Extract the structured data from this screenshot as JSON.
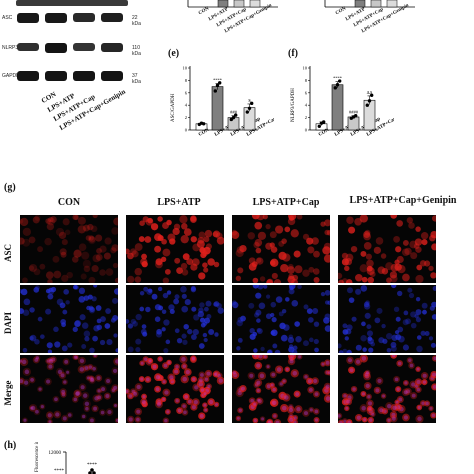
{
  "blot": {
    "rows": [
      {
        "label": "ASC",
        "kda": "22 kDa",
        "bands": [
          0.95,
          0.95,
          0.7,
          0.85
        ]
      },
      {
        "label": "NLRP3",
        "kda": "110 kDa",
        "bands": [
          0.6,
          1.0,
          0.55,
          0.75
        ]
      },
      {
        "label": "GAPDH",
        "kda": "37 kDa",
        "bands": [
          1.0,
          1.0,
          1.0,
          1.0
        ]
      }
    ],
    "lanes": [
      "CON",
      "LPS+ATP",
      "LPS+ATP+Cap",
      "LPS+ATP+Cap+Genipin"
    ]
  },
  "panels": {
    "e": "(e)",
    "f": "(f)",
    "g": "(g)",
    "h": "(h)"
  },
  "chart_data": [
    {
      "type": "bar",
      "panel": "(e)",
      "ylabel": "ASC/GAPDH",
      "categories": [
        "CON",
        "LPS+ATP",
        "LPS+ATP+Cap",
        "LPS+ATP+Cap+Genipin"
      ],
      "values": [
        1.0,
        7.0,
        2.0,
        3.6
      ],
      "points": [
        [
          0.9,
          1.1,
          1.0
        ],
        [
          6.3,
          7.2,
          7.6
        ],
        [
          1.7,
          2.0,
          2.4
        ],
        [
          2.9,
          3.5,
          4.3
        ]
      ],
      "errors": [
        0.1,
        0.5,
        0.3,
        0.6
      ],
      "annotations": [
        "",
        "****",
        "###",
        "$"
      ],
      "ylim": [
        0,
        10
      ],
      "yticks": [
        0,
        2,
        4,
        6,
        8,
        10
      ],
      "colors": [
        "#ffffff",
        "#7f7f7f",
        "#c8c8c8",
        "#dcdcdc"
      ]
    },
    {
      "type": "bar",
      "panel": "(f)",
      "ylabel": "NLRP3/GAPDH",
      "categories": [
        "CON",
        "LPS+ATP",
        "LPS+ATP+Cap",
        "LPS+ATP+Cap+Genipin"
      ],
      "values": [
        1.0,
        7.3,
        2.1,
        4.8
      ],
      "points": [
        [
          0.6,
          1.1,
          1.3
        ],
        [
          6.8,
          7.3,
          7.9
        ],
        [
          1.9,
          2.1,
          2.3
        ],
        [
          4.0,
          4.7,
          5.6
        ]
      ],
      "errors": [
        0.3,
        0.5,
        0.2,
        0.7
      ],
      "annotations": [
        "",
        "****",
        "####",
        "ΔΔ"
      ],
      "ylim": [
        0,
        10
      ],
      "yticks": [
        0,
        2,
        4,
        6,
        8,
        10
      ],
      "colors": [
        "#ffffff",
        "#7f7f7f",
        "#c8c8c8",
        "#dcdcdc"
      ]
    },
    {
      "type": "scatter",
      "panel": "(h)",
      "ylabel": "Fluorescence intensity",
      "yticks": [
        12000
      ],
      "annotations": [
        "****",
        "****"
      ],
      "partial": true
    }
  ],
  "top_charts": {
    "labels": [
      "CON",
      "LPS+ATP",
      "LPS+ATP+Cap",
      "LPS+ATP+Cap+Genipin"
    ]
  },
  "micrographs": {
    "columns": [
      "CON",
      "LPS+ATP",
      "LPS+ATP+Cap",
      "LPS+ATP+Cap+Genipin"
    ],
    "rows": [
      "ASC",
      "DAPI",
      "Merge"
    ],
    "red_intensity": [
      0.35,
      0.95,
      0.8,
      0.85
    ],
    "blue_intensity": [
      0.8,
      0.8,
      0.8,
      0.8
    ],
    "colors": {
      "red": "#e0201c",
      "blue": "#2430d8",
      "background": "#050505"
    }
  },
  "h_panel": {
    "ytick": "12000",
    "stars": [
      "****",
      "****"
    ]
  }
}
